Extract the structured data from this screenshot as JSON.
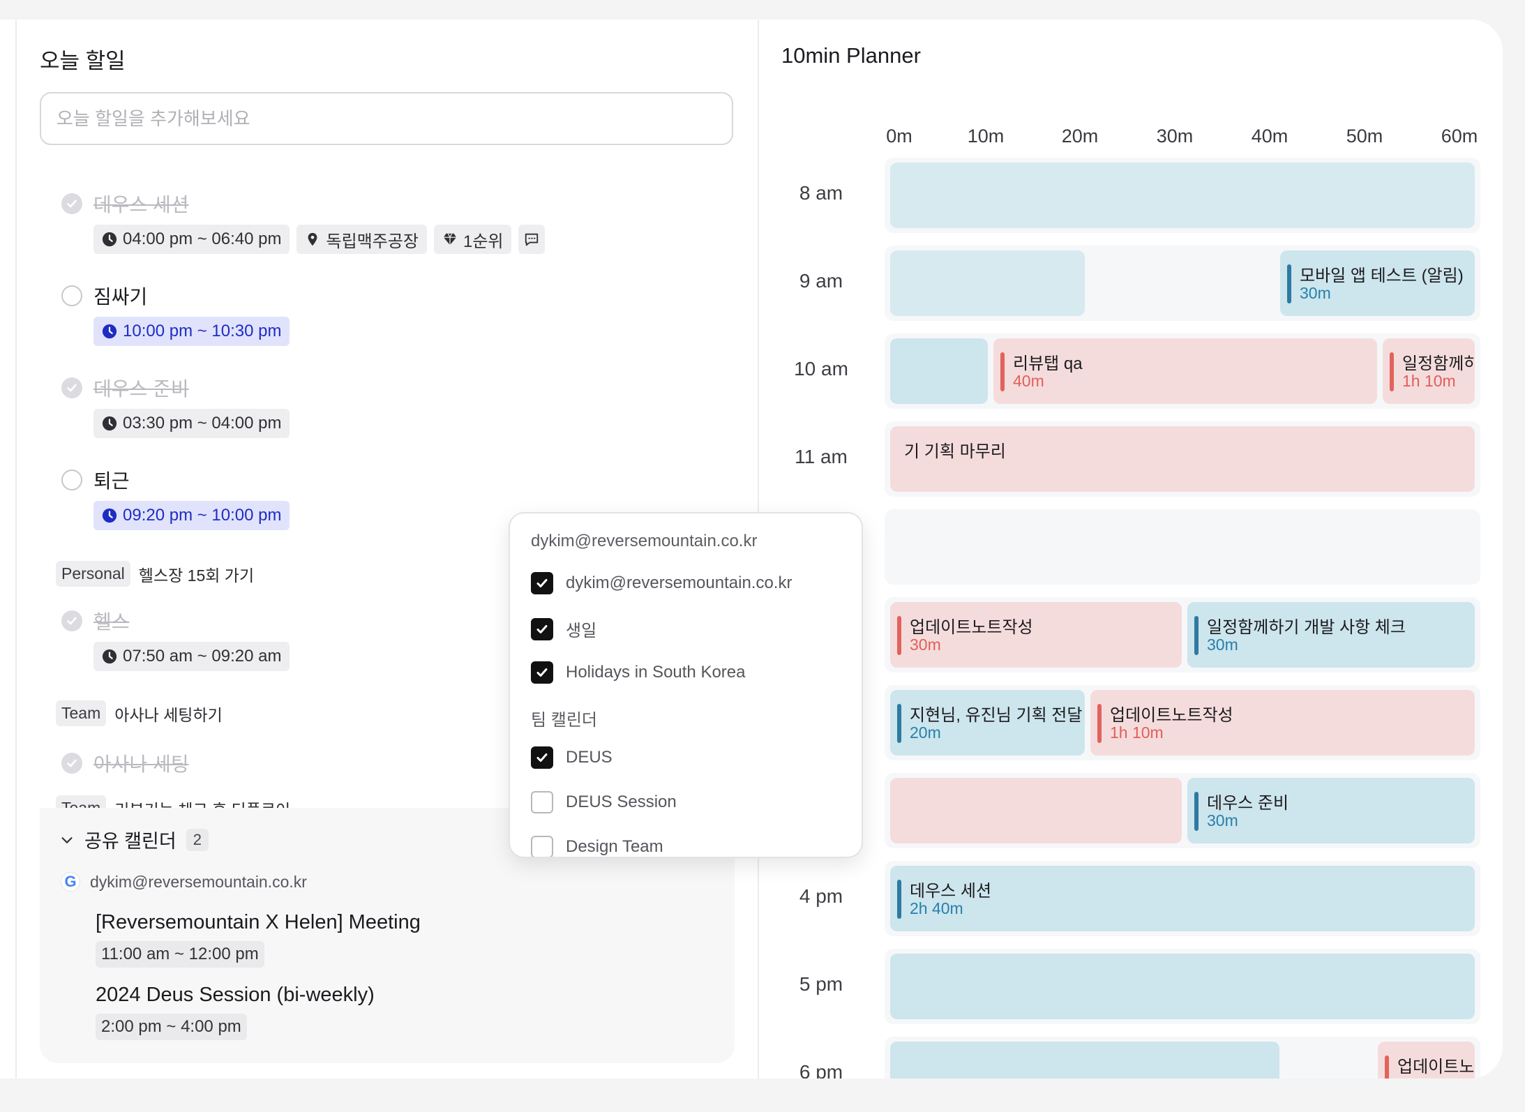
{
  "today": {
    "title": "오늘 할일",
    "input_placeholder": "오늘 할일을 추가해보세요",
    "tasks": [
      {
        "title": "데우스 세션",
        "done": true,
        "time": "04:00 pm ~ 06:40 pm",
        "location": "독립맥주공장",
        "priority": "1순위"
      },
      {
        "title": "짐싸기",
        "done": false,
        "time": "10:00 pm ~ 10:30 pm"
      },
      {
        "title": "데우스 준비",
        "done": true,
        "time": "03:30 pm ~ 04:00 pm"
      },
      {
        "title": "퇴근",
        "done": false,
        "time": "09:20 pm ~ 10:00 pm"
      },
      {
        "title": "헬스",
        "done": true,
        "time": "07:50 am ~ 09:20 am"
      },
      {
        "title": "아사나 세팅",
        "done": true
      }
    ],
    "goals": [
      {
        "tag": "Personal",
        "text": "헬스장 15회 가기"
      },
      {
        "tag": "Team",
        "text": "아사나 세팅하기"
      },
      {
        "tag": "Team",
        "text": "리뷰기능 체크 후 디플로이"
      }
    ]
  },
  "shared_calendar": {
    "title": "공유 캘린더",
    "count": "2",
    "account": "dykim@reversemountain.co.kr",
    "events": [
      {
        "title": "[Reversemountain X Helen] Meeting",
        "time": "11:00 am ~ 12:00 pm"
      },
      {
        "title": "2024 Deus Session (bi-weekly)",
        "time": "2:00 pm ~ 4:00 pm"
      }
    ]
  },
  "dropdown": {
    "account_header": "dykim@reversemountain.co.kr",
    "items": [
      {
        "label": "dykim@reversemountain.co.kr",
        "checked": true
      },
      {
        "label": "생일",
        "checked": true
      },
      {
        "label": "Holidays in South Korea",
        "checked": true
      }
    ],
    "team_header": "팀 캘린더",
    "team_items": [
      {
        "label": "DEUS",
        "checked": true
      },
      {
        "label": "DEUS Session",
        "checked": false
      },
      {
        "label": "Design Team",
        "checked": false
      }
    ]
  },
  "planner": {
    "title": "10min Planner",
    "columns": [
      "0m",
      "10m",
      "20m",
      "30m",
      "40m",
      "50m",
      "60m"
    ],
    "hours": [
      "8 am",
      "9 am",
      "10 am",
      "11 am",
      "",
      "",
      "",
      "",
      "4 pm",
      "5 pm",
      "6 pm"
    ],
    "blocks": [
      {
        "title": "모바일 앱 테스트 (알림)",
        "duration": "30m"
      },
      {
        "title": "리뷰탭 qa",
        "duration": "40m"
      },
      {
        "title": "일정함께하",
        "duration": "1h 10m"
      },
      {
        "title": "기 기획 마무리",
        "duration": ""
      },
      {
        "title": "업데이트노트작성",
        "duration": "30m"
      },
      {
        "title": "일정함께하기 개발 사항 체크",
        "duration": "30m"
      },
      {
        "title": "지현님, 유진님 기획 전달",
        "duration": "20m"
      },
      {
        "title": "업데이트노트작성",
        "duration": "1h 10m"
      },
      {
        "title": "데우스 준비",
        "duration": "30m"
      },
      {
        "title": "데우스 세션",
        "duration": "2h 40m"
      },
      {
        "title": "업데이트노",
        "duration": ""
      }
    ]
  },
  "colors": {
    "accent_blue": "#1f2cc4",
    "block_blue": "#cde5ec",
    "block_pink": "#f5dcdc"
  }
}
